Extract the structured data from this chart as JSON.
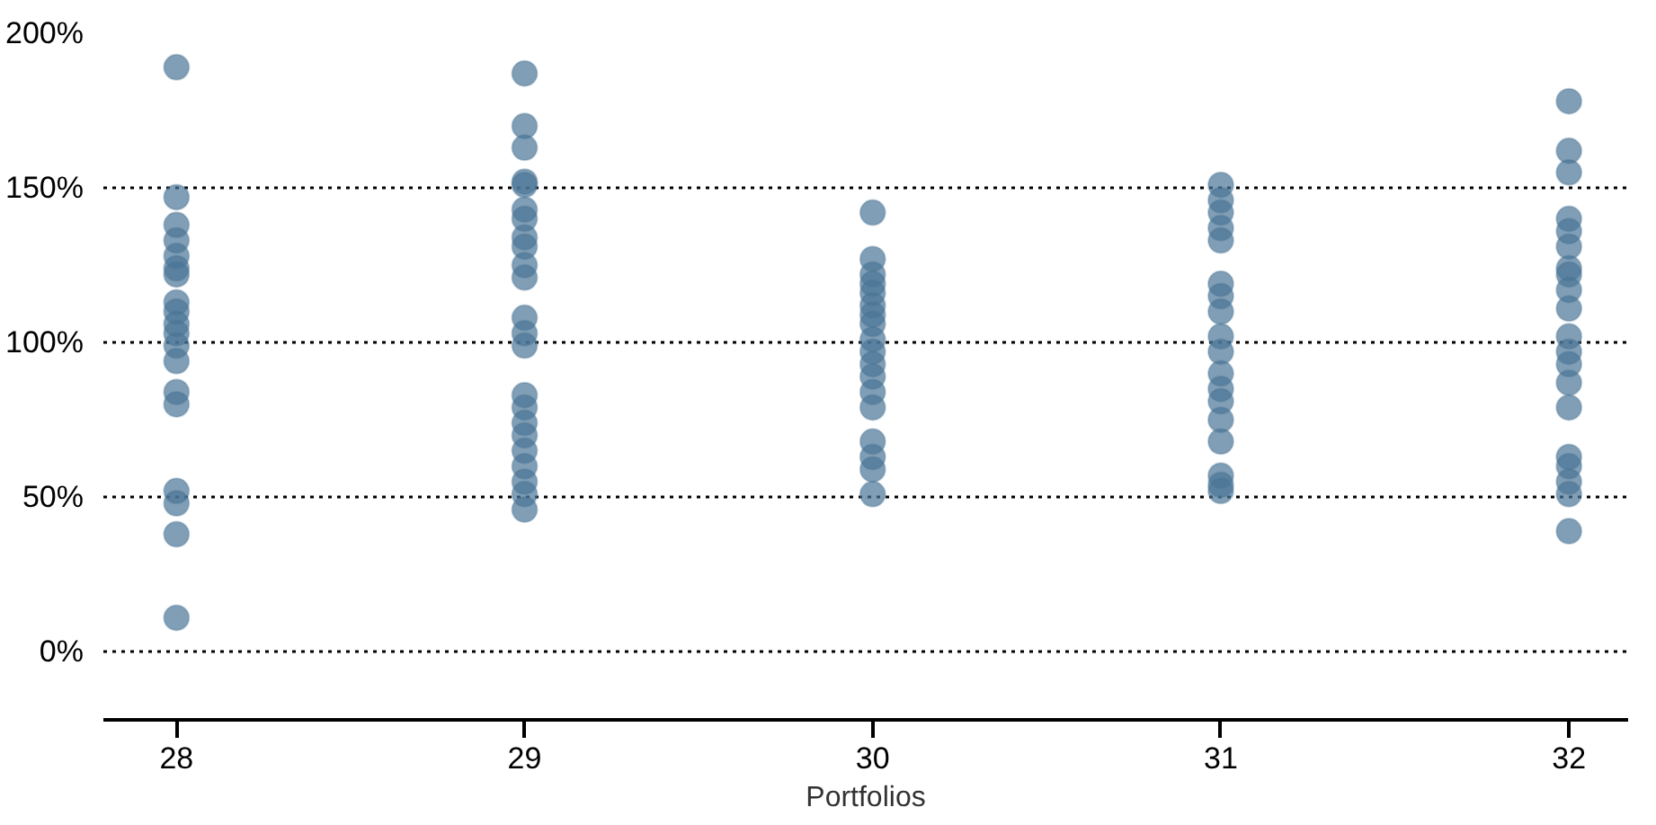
{
  "chart_data": {
    "type": "scatter",
    "xlabel": "Portfolios",
    "marker": "circle",
    "grid": "y",
    "line_style": "dotted",
    "xlim": [
      27.79,
      32.17
    ],
    "xticks": [
      28,
      29,
      30,
      31,
      32
    ],
    "ylim": [
      -22,
      200
    ],
    "yticks": [
      {
        "value": 0,
        "label": "0%"
      },
      {
        "value": 50,
        "label": "50%"
      },
      {
        "value": 100,
        "label": "100%"
      },
      {
        "value": 150,
        "label": "150%"
      },
      {
        "value": 200,
        "label": "200%"
      }
    ],
    "series": [
      {
        "color": "#4a7596",
        "x": [
          28,
          28,
          28,
          28,
          28,
          28,
          28,
          28,
          28,
          28,
          28,
          28,
          28,
          28,
          28,
          28,
          28,
          28,
          28,
          29,
          29,
          29,
          29,
          29,
          29,
          29,
          29,
          29,
          29,
          29,
          29,
          29,
          29,
          29,
          29,
          29,
          29,
          29,
          29,
          29,
          29,
          29,
          30,
          30,
          30,
          30,
          30,
          30,
          30,
          30,
          30,
          30,
          30,
          30,
          30,
          30,
          30,
          30,
          30,
          30,
          31,
          31,
          31,
          31,
          31,
          31,
          31,
          31,
          31,
          31,
          31,
          31,
          31,
          31,
          31,
          31,
          31,
          31,
          32,
          32,
          32,
          32,
          32,
          32,
          32,
          32,
          32,
          32,
          32,
          32,
          32,
          32,
          32,
          32,
          32,
          32,
          32,
          32
        ],
        "values": [
          189,
          147,
          138,
          133,
          128,
          124,
          122,
          113,
          110,
          106,
          103,
          99,
          94,
          84,
          80,
          52,
          48,
          38,
          11,
          187,
          170,
          163,
          152,
          151,
          143,
          140,
          134,
          131,
          125,
          121,
          108,
          103,
          99,
          83,
          79,
          74,
          70,
          65,
          60,
          55,
          51,
          46,
          142,
          127,
          122,
          119,
          116,
          112,
          109,
          106,
          101,
          97,
          93,
          89,
          84,
          79,
          68,
          63,
          59,
          51,
          151,
          146,
          142,
          137,
          133,
          119,
          115,
          110,
          102,
          97,
          90,
          85,
          81,
          75,
          68,
          57,
          54,
          52,
          178,
          162,
          155,
          140,
          136,
          131,
          124,
          122,
          117,
          111,
          102,
          97,
          93,
          87,
          79,
          63,
          60,
          55,
          51,
          39
        ]
      }
    ]
  }
}
